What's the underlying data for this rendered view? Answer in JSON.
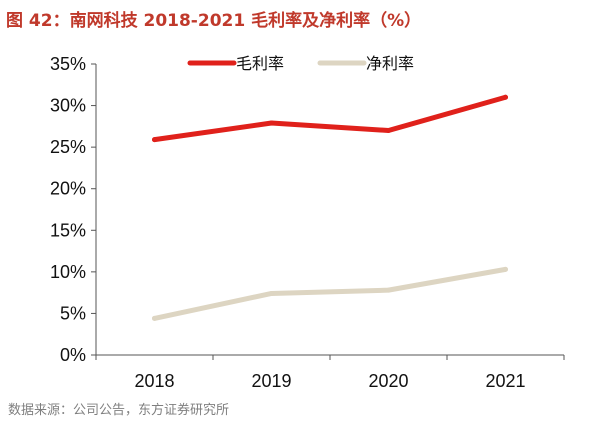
{
  "header": {
    "title": "图 42：南网科技 2018-2021 毛利率及净利率（%）"
  },
  "footer": {
    "source": "数据来源：公司公告，东方证券研究所"
  },
  "chart_data": {
    "type": "line",
    "title": "",
    "xlabel": "",
    "ylabel": "",
    "x": [
      "2018",
      "2019",
      "2020",
      "2021"
    ],
    "ylim": [
      0,
      35
    ],
    "yticks": [
      0,
      5,
      10,
      15,
      20,
      25,
      30,
      35
    ],
    "ytick_labels": [
      "0%",
      "5%",
      "10%",
      "15%",
      "20%",
      "25%",
      "30%",
      "35%"
    ],
    "grid": false,
    "legend_position": "top",
    "series": [
      {
        "name": "毛利率",
        "values": [
          25.9,
          27.9,
          27.0,
          31.0
        ],
        "color": "#e0211b"
      },
      {
        "name": "净利率",
        "values": [
          4.4,
          7.4,
          7.8,
          10.3
        ],
        "color": "#ddd5c2"
      }
    ]
  }
}
